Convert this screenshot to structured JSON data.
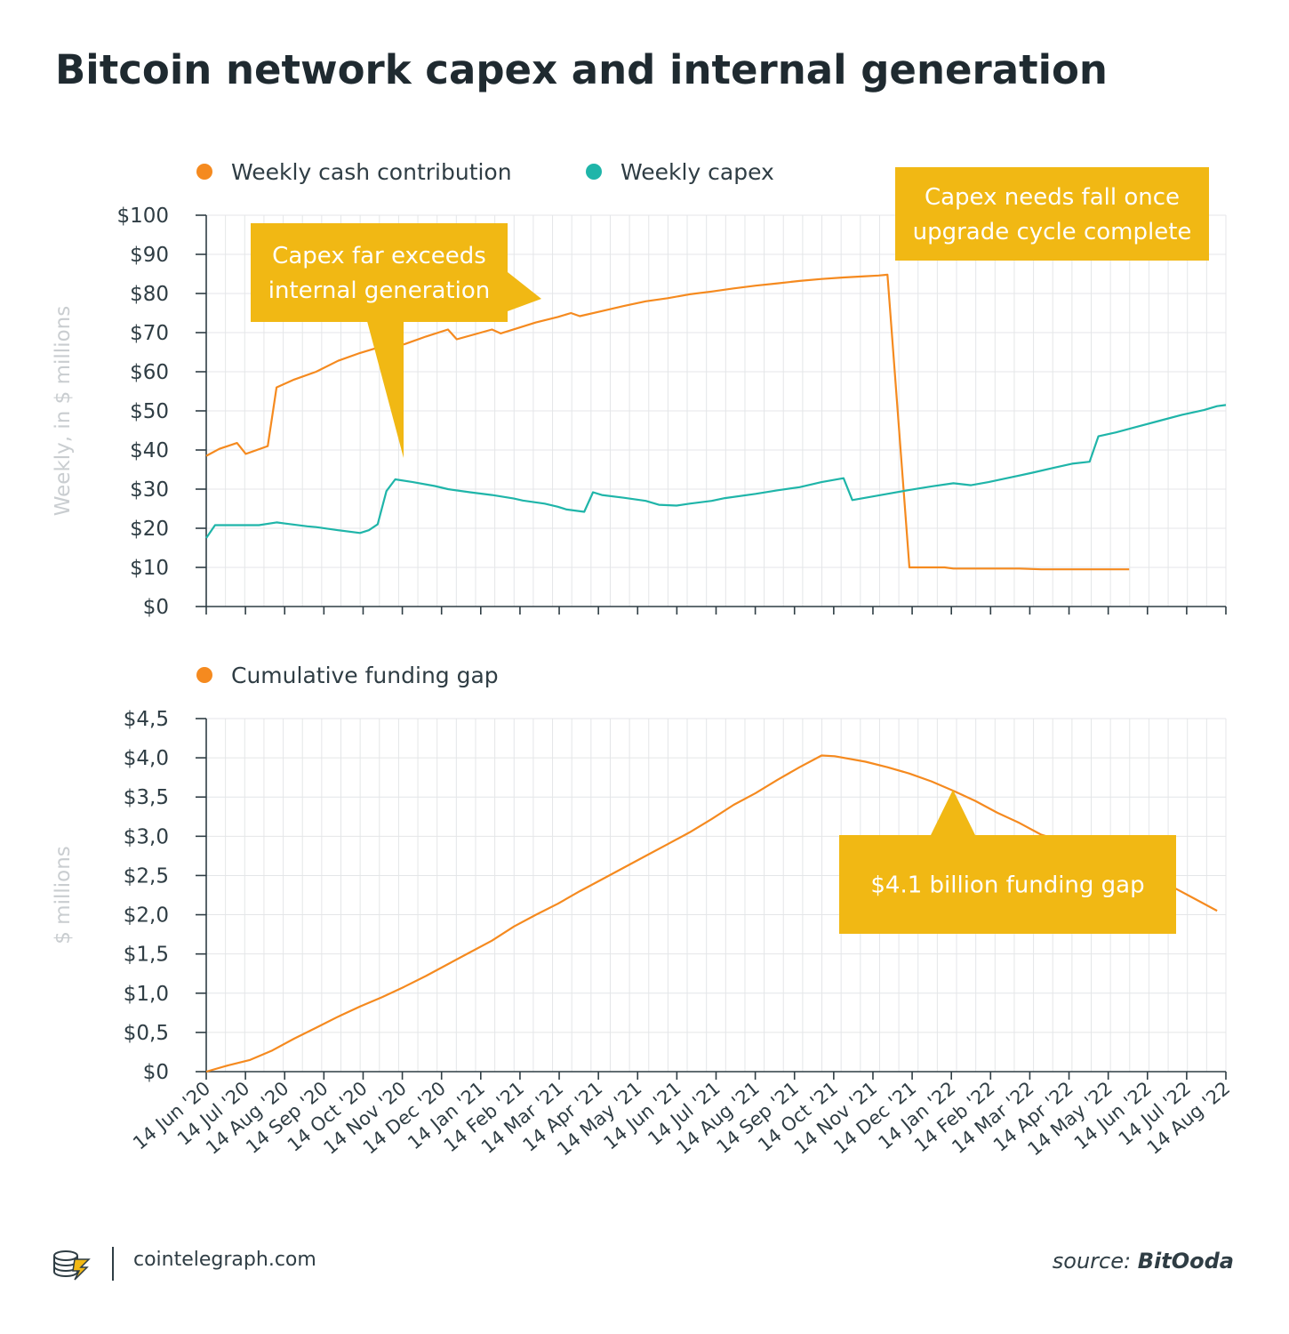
{
  "title": "Bitcoin network capex and internal generation",
  "footer": {
    "site": "cointelegraph.com",
    "source_label": "source:",
    "source_name": "BitOoda",
    "logo_icon": "cointelegraph-logo-icon"
  },
  "colors": {
    "orange": "#f58a1f",
    "teal": "#1fb5a9",
    "callout": "#f1b814",
    "grid": "#e4e6e8",
    "axis": "#2f3d44",
    "muted": "#c9cdd0"
  },
  "chart_data": [
    {
      "type": "line",
      "ylabel": "Weekly, in $ millions",
      "ylim": [
        0,
        100
      ],
      "ytick_labels": [
        "$0",
        "$10",
        "$20",
        "$30",
        "$40",
        "$50",
        "$60",
        "$70",
        "$80",
        "$90",
        "$100"
      ],
      "legend_position": "top-left",
      "series": [
        {
          "name": "Weekly cash contribution",
          "color": "#f58a1f",
          "points": [
            [
              0,
              38.5
            ],
            [
              3,
              40.3
            ],
            [
              7,
              41.8
            ],
            [
              9,
              39
            ],
            [
              14,
              41
            ],
            [
              16,
              56
            ],
            [
              20,
              58
            ],
            [
              25,
              60
            ],
            [
              30,
              62.8
            ],
            [
              35,
              64.8
            ],
            [
              40,
              66.5
            ],
            [
              45,
              67
            ],
            [
              50,
              69
            ],
            [
              55,
              70.8
            ],
            [
              57,
              68.3
            ],
            [
              65,
              70.8
            ],
            [
              67,
              69.8
            ],
            [
              75,
              72.6
            ],
            [
              80,
              74
            ],
            [
              83,
              75
            ],
            [
              85,
              74.2
            ],
            [
              90,
              75.5
            ],
            [
              95,
              76.8
            ],
            [
              100,
              78
            ],
            [
              105,
              78.8
            ],
            [
              110,
              79.8
            ],
            [
              115,
              80.5
            ],
            [
              120,
              81.3
            ],
            [
              125,
              82
            ],
            [
              130,
              82.6
            ],
            [
              135,
              83.2
            ],
            [
              140,
              83.7
            ],
            [
              145,
              84.1
            ],
            [
              150,
              84.4
            ],
            [
              153,
              84.6
            ],
            [
              155,
              84.8
            ],
            [
              160,
              10
            ],
            [
              168,
              10
            ],
            [
              170,
              9.7
            ],
            [
              185,
              9.7
            ],
            [
              190,
              9.5
            ],
            [
              210,
              9.5
            ]
          ]
        },
        {
          "name": "Weekly capex",
          "color": "#1fb5a9",
          "points": [
            [
              0,
              17.5
            ],
            [
              2,
              20.8
            ],
            [
              12,
              20.8
            ],
            [
              16,
              21.5
            ],
            [
              18,
              21.2
            ],
            [
              23,
              20.5
            ],
            [
              25,
              20.3
            ],
            [
              30,
              19.5
            ],
            [
              35,
              18.8
            ],
            [
              37,
              19.5
            ],
            [
              39,
              21
            ],
            [
              41,
              29.5
            ],
            [
              43,
              32.5
            ],
            [
              47,
              31.8
            ],
            [
              52,
              30.8
            ],
            [
              55,
              30
            ],
            [
              60,
              29.2
            ],
            [
              65,
              28.5
            ],
            [
              70,
              27.6
            ],
            [
              72,
              27.1
            ],
            [
              77,
              26.3
            ],
            [
              80,
              25.5
            ],
            [
              82,
              24.8
            ],
            [
              86,
              24.2
            ],
            [
              88,
              29.2
            ],
            [
              90,
              28.5
            ],
            [
              95,
              27.8
            ],
            [
              100,
              27
            ],
            [
              103,
              26
            ],
            [
              107,
              25.8
            ],
            [
              110,
              26.3
            ],
            [
              115,
              27
            ],
            [
              118,
              27.7
            ],
            [
              125,
              28.8
            ],
            [
              130,
              29.7
            ],
            [
              135,
              30.5
            ],
            [
              140,
              31.8
            ],
            [
              145,
              32.8
            ],
            [
              147,
              27.2
            ],
            [
              150,
              27.8
            ],
            [
              155,
              28.8
            ],
            [
              160,
              29.8
            ],
            [
              165,
              30.7
            ],
            [
              170,
              31.5
            ],
            [
              174,
              31
            ],
            [
              178,
              31.8
            ],
            [
              183,
              33
            ],
            [
              188,
              34.2
            ],
            [
              193,
              35.5
            ],
            [
              197,
              36.5
            ],
            [
              201,
              37
            ],
            [
              203,
              43.5
            ],
            [
              207,
              44.5
            ],
            [
              212,
              46
            ],
            [
              217,
              47.5
            ],
            [
              222,
              49
            ],
            [
              227,
              50.2
            ],
            [
              230,
              51.2
            ],
            [
              232,
              51.5
            ]
          ]
        }
      ]
    },
    {
      "type": "line",
      "ylabel": "$ millions",
      "ylim": [
        0,
        4.5
      ],
      "ytick_labels": [
        "$0",
        "$0,5",
        "$1,0",
        "$1,5",
        "$2,0",
        "$2,5",
        "$3,0",
        "$3,5",
        "$4,0",
        "$4,5"
      ],
      "legend_position": "top-left",
      "series": [
        {
          "name": "Cumulative funding gap",
          "color": "#f58a1f",
          "points": [
            [
              0,
              0
            ],
            [
              5,
              0.08
            ],
            [
              10,
              0.15
            ],
            [
              15,
              0.27
            ],
            [
              20,
              0.42
            ],
            [
              25,
              0.56
            ],
            [
              30,
              0.7
            ],
            [
              35,
              0.83
            ],
            [
              40,
              0.95
            ],
            [
              45,
              1.08
            ],
            [
              50,
              1.22
            ],
            [
              55,
              1.37
            ],
            [
              60,
              1.52
            ],
            [
              65,
              1.67
            ],
            [
              70,
              1.85
            ],
            [
              75,
              2
            ],
            [
              80,
              2.14
            ],
            [
              85,
              2.3
            ],
            [
              90,
              2.45
            ],
            [
              95,
              2.6
            ],
            [
              100,
              2.75
            ],
            [
              105,
              2.9
            ],
            [
              110,
              3.05
            ],
            [
              115,
              3.22
            ],
            [
              120,
              3.4
            ],
            [
              125,
              3.55
            ],
            [
              130,
              3.72
            ],
            [
              135,
              3.88
            ],
            [
              140,
              4.03
            ],
            [
              143,
              4.02
            ],
            [
              150,
              3.95
            ],
            [
              155,
              3.88
            ],
            [
              160,
              3.8
            ],
            [
              165,
              3.7
            ],
            [
              170,
              3.58
            ],
            [
              175,
              3.45
            ],
            [
              180,
              3.3
            ],
            [
              185,
              3.17
            ],
            [
              190,
              3.02
            ],
            [
              193,
              2.97
            ],
            [
              200,
              2.84
            ],
            [
              206,
              2.73
            ],
            [
              210,
              2.62
            ],
            [
              215,
              2.5
            ],
            [
              220,
              2.35
            ],
            [
              225,
              2.2
            ],
            [
              230,
              2.05
            ]
          ]
        }
      ]
    }
  ],
  "x_axis": {
    "tick_labels": [
      "14 Jun '20",
      "14 Jul '20",
      "14 Aug '20",
      "14 Sep '20",
      "14 Oct '20",
      "14 Nov '20",
      "14 Dec '20",
      "14 Jan '21",
      "14 Feb '21",
      "14 Mar '21",
      "14 Apr '21",
      "14 May '21",
      "14 Jun '21",
      "14 Jul '21",
      "14 Aug '21",
      "14 Sep '21",
      "14 Oct '21",
      "14 Nov '21",
      "14 Dec '21",
      "14 Jan '22",
      "14 Feb '22",
      "14 Mar '22",
      "14 Apr '22",
      "14 May '22",
      "14 Jun '22",
      "14 Jul '22",
      "14 Aug '22"
    ]
  },
  "annotations": {
    "capex_exceeds": "Capex far exceeds internal generation",
    "capex_falls": "Capex needs fall once upgrade cycle complete",
    "funding_gap": "$4.1 billion funding gap"
  }
}
